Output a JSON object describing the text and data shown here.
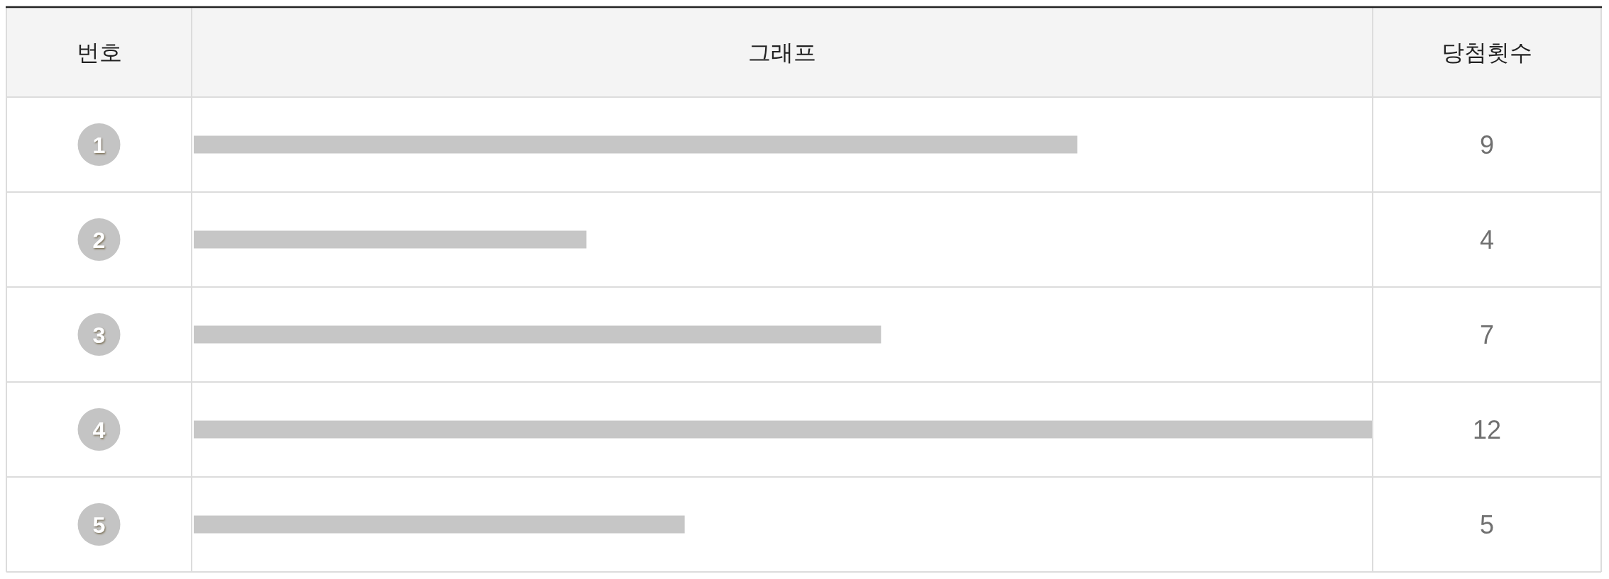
{
  "chart_data": {
    "type": "bar",
    "orientation": "horizontal",
    "title": "그래프",
    "ylabel": "번호",
    "xlabel": "당첨횟수",
    "categories": [
      "1",
      "2",
      "3",
      "4",
      "5"
    ],
    "values": [
      9,
      4,
      7,
      12,
      5
    ],
    "color": "#c6c6c6",
    "data_labels": true
  }
}
